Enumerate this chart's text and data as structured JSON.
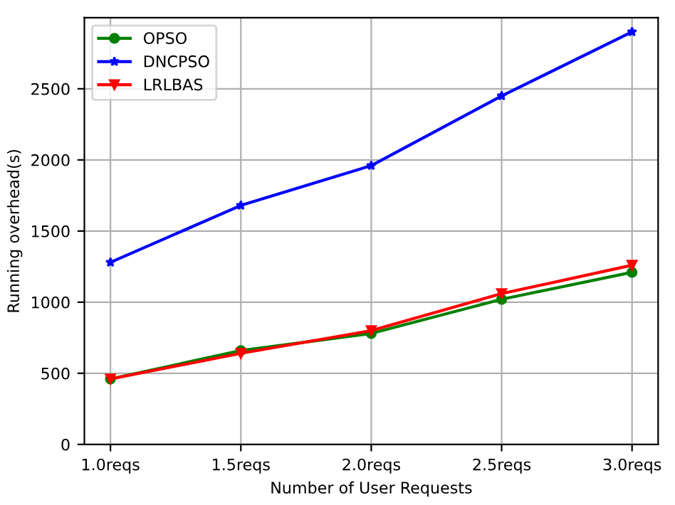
{
  "chart_data": {
    "type": "line",
    "xlabel": "Number of User Requests",
    "ylabel": "Running overhead(s)",
    "categories": [
      "1.0reqs",
      "1.5reqs",
      "2.0reqs",
      "2.5reqs",
      "3.0reqs"
    ],
    "series": [
      {
        "name": "OPSO",
        "color": "#008000",
        "marker": "circle",
        "values": [
          460,
          660,
          780,
          1020,
          1210
        ]
      },
      {
        "name": "DNCPSO",
        "color": "#0000ff",
        "marker": "star",
        "values": [
          1280,
          1680,
          1960,
          2450,
          2900
        ]
      },
      {
        "name": "LRLBAS",
        "color": "#ff0000",
        "marker": "triangle",
        "values": [
          460,
          640,
          800,
          1060,
          1260
        ]
      }
    ],
    "ylim": [
      0,
      3000
    ],
    "yticks": [
      0,
      500,
      1000,
      1500,
      2000,
      2500
    ],
    "grid": true,
    "legend": "top left",
    "line_style": "solid"
  }
}
